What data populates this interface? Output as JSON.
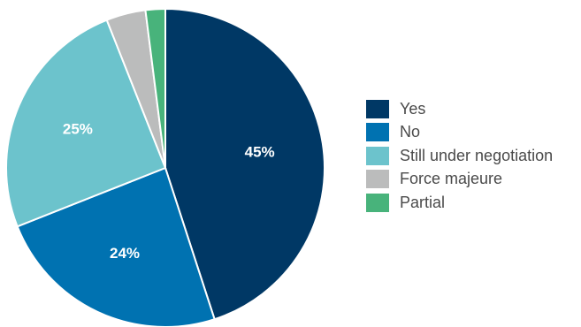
{
  "chart_data": {
    "type": "pie",
    "slices": [
      {
        "label": "Yes",
        "value": 45,
        "display": "45%",
        "color": "#003865"
      },
      {
        "label": "No",
        "value": 24,
        "display": "24%",
        "color": "#0072b1"
      },
      {
        "label": "Still under negotiation",
        "value": 25,
        "display": "25%",
        "color": "#6cc3cc"
      },
      {
        "label": "Force majeure",
        "value": 4,
        "display": "",
        "color": "#bbbcbc"
      },
      {
        "label": "Partial",
        "value": 2,
        "display": "",
        "color": "#48b37b"
      }
    ],
    "legend_position": "right"
  }
}
